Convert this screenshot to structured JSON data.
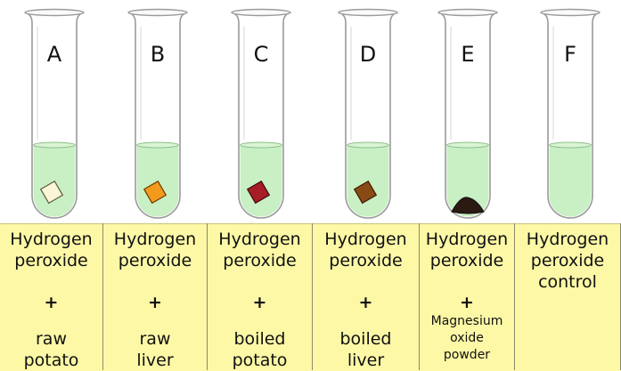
{
  "tubes": [
    {
      "letter": "A",
      "object": "square",
      "object_color": "#fbf6d8",
      "object_stroke": "#5a5a3a"
    },
    {
      "letter": "B",
      "object": "square",
      "object_color": "#f39a1c",
      "object_stroke": "#6a3a00"
    },
    {
      "letter": "C",
      "object": "square",
      "object_color": "#a81c26",
      "object_stroke": "#3a0a0a"
    },
    {
      "letter": "D",
      "object": "square",
      "object_color": "#8a4a16",
      "object_stroke": "#3a1a00"
    },
    {
      "letter": "E",
      "object": "powder",
      "object_color": "#2a1a12",
      "object_stroke": "#111111"
    },
    {
      "letter": "F",
      "object": "none"
    }
  ],
  "columns": [
    {
      "line1": "Hydrogen",
      "line2": "peroxide",
      "plus": "+",
      "sub1": "raw",
      "sub2": "potato"
    },
    {
      "line1": "Hydrogen",
      "line2": "peroxide",
      "plus": "+",
      "sub1": "raw",
      "sub2": "liver"
    },
    {
      "line1": "Hydrogen",
      "line2": "peroxide",
      "plus": "+",
      "sub1": "boiled",
      "sub2": "potato"
    },
    {
      "line1": "Hydrogen",
      "line2": "peroxide",
      "plus": "+",
      "sub1": "boiled",
      "sub2": "liver"
    },
    {
      "line1": "Hydrogen",
      "line2": "peroxide",
      "plus": "+",
      "sub1": "Magnesium",
      "sub2": "oxide",
      "sub3": "powder"
    },
    {
      "line1": "Hydrogen",
      "line2": "peroxide",
      "line3": "control"
    }
  ],
  "colors": {
    "liquid": "#c9efc4",
    "liquid_edge": "#8fbd8a",
    "glass": "#ffffff",
    "glass_outline": "#9a9a9a",
    "panel": "#fcf8a6",
    "divider": "#8c8a6a"
  }
}
